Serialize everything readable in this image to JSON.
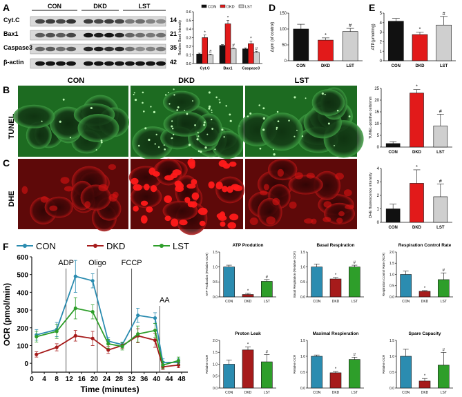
{
  "panel_letters": {
    "A": "A",
    "B": "B",
    "C": "C",
    "D": "D",
    "E": "E",
    "F": "F"
  },
  "western_blot": {
    "group_labels": [
      "CON",
      "DKD",
      "LST"
    ],
    "bands": [
      {
        "name": "Cyt.C",
        "kda": "14"
      },
      {
        "name": "Bax1",
        "kda": "21"
      },
      {
        "name": "Caspase3",
        "kda": "35"
      },
      {
        "name": "β-actin",
        "kda": "42"
      }
    ]
  },
  "micrographs": {
    "column_labels": [
      "CON",
      "DKD",
      "LST"
    ],
    "row_labels": [
      "TUNEL",
      "DHE"
    ]
  },
  "colors": {
    "CON": "#111111",
    "DKD": "#e21a1a",
    "LST": "#cfcfcf",
    "oc_CON": "#2b8cb0",
    "oc_DKD": "#a61b1b",
    "oc_LST": "#2e9e2a",
    "tunel": "#2f9a32",
    "dhe": "#c81010"
  },
  "chart_data": [
    {
      "id": "A-bands",
      "type": "bar",
      "title": "",
      "ylabel": "Relative Band Intensity",
      "categories": [
        "Cyt.C",
        "Bax1",
        "Caspase3"
      ],
      "series": [
        {
          "name": "CON",
          "values": [
            0.11,
            0.21,
            0.17
          ],
          "errors": [
            0.01,
            0.01,
            0.01
          ]
        },
        {
          "name": "DKD",
          "values": [
            0.3,
            0.46,
            0.23
          ],
          "errors": [
            0.03,
            0.04,
            0.03
          ]
        },
        {
          "name": "LST",
          "values": [
            0.1,
            0.17,
            0.13
          ],
          "errors": [
            0.01,
            0.01,
            0.01
          ]
        }
      ],
      "ylim": [
        0,
        0.6
      ],
      "yticks": [
        0.0,
        0.1,
        0.2,
        0.3,
        0.4,
        0.5,
        0.6
      ],
      "ytick_labels": [
        "0.0",
        "0.1",
        "0.2",
        "0.3",
        "0.4",
        "0.5",
        "0.6"
      ],
      "markers": [
        "",
        "*",
        "#",
        "",
        "*",
        "#",
        "",
        "*",
        "#"
      ],
      "legend": "top"
    },
    {
      "id": "D",
      "type": "bar",
      "title": "",
      "ylabel": "Δψm (of control)",
      "categories": [
        "CON",
        "DKD",
        "LST"
      ],
      "values": [
        100,
        65,
        92
      ],
      "errors": [
        15,
        7,
        10
      ],
      "ylim": [
        0,
        150
      ],
      "yticks": [
        0,
        50,
        100,
        150
      ],
      "ytick_labels": [
        "0",
        "50",
        "100",
        "150"
      ],
      "markers": [
        "",
        "*",
        "#"
      ]
    },
    {
      "id": "E",
      "type": "bar",
      "title": "",
      "ylabel": "ATP(μmol/mg)",
      "categories": [
        "CON",
        "DKD",
        "LST"
      ],
      "values": [
        4.15,
        2.75,
        3.75
      ],
      "errors": [
        0.3,
        0.25,
        0.9
      ],
      "ylim": [
        0,
        5
      ],
      "yticks": [
        0,
        1,
        2,
        3,
        4,
        5
      ],
      "ytick_labels": [
        "0",
        "1",
        "2",
        "3",
        "4",
        "5"
      ],
      "markers": [
        "",
        "*",
        "#"
      ]
    },
    {
      "id": "B-quant",
      "type": "bar",
      "title": "",
      "ylabel": "TUNEL-positive cells/mm",
      "categories": [
        "CON",
        "DKD",
        "LST"
      ],
      "values": [
        1.5,
        23,
        9
      ],
      "errors": [
        0.8,
        1.5,
        5
      ],
      "ylim": [
        0,
        25
      ],
      "yticks": [
        0,
        5,
        10,
        15,
        20,
        25
      ],
      "ytick_labels": [
        "0",
        "5",
        "10",
        "15",
        "20",
        "25"
      ],
      "markers": [
        "",
        "*",
        "#"
      ]
    },
    {
      "id": "C-quant",
      "type": "bar",
      "title": "",
      "ylabel": "DHE fluorescence intensity",
      "categories": [
        "CON",
        "DKD",
        "LST"
      ],
      "values": [
        1.0,
        2.9,
        1.9
      ],
      "errors": [
        0.35,
        1.0,
        0.95
      ],
      "ylim": [
        0,
        4
      ],
      "yticks": [
        0,
        1,
        2,
        3,
        4
      ],
      "ytick_labels": [
        "0",
        "1",
        "2",
        "3",
        "4"
      ],
      "markers": [
        "",
        "*",
        "#"
      ]
    },
    {
      "id": "F-ocr",
      "type": "line",
      "title": "",
      "xlabel": "Time (minutes)",
      "ylabel": "OCR (pmol/min)",
      "x": [
        1.5,
        8,
        14,
        19.5,
        24.5,
        29,
        34,
        39.5,
        42,
        47
      ],
      "series": [
        {
          "name": "CON",
          "values": [
            160,
            190,
            490,
            465,
            125,
            105,
            270,
            255,
            5,
            5
          ]
        },
        {
          "name": "DKD",
          "values": [
            50,
            90,
            155,
            140,
            75,
            100,
            155,
            130,
            -20,
            -10
          ]
        },
        {
          "name": "LST",
          "values": [
            150,
            180,
            310,
            290,
            110,
            95,
            165,
            185,
            -10,
            15
          ]
        }
      ],
      "errors": [
        [
          30,
          40,
          90,
          40,
          20,
          15,
          40,
          30,
          20,
          20
        ],
        [
          15,
          20,
          30,
          40,
          20,
          15,
          40,
          40,
          15,
          15
        ],
        [
          30,
          40,
          60,
          40,
          25,
          20,
          45,
          40,
          20,
          20
        ]
      ],
      "xlim": [
        0,
        50
      ],
      "xticks": [
        0,
        4,
        8,
        12,
        16,
        20,
        24,
        28,
        32,
        36,
        40,
        44,
        48
      ],
      "xtick_labels": [
        "0",
        "4",
        "8",
        "12",
        "16",
        "20",
        "24",
        "28",
        "32",
        "36",
        "40",
        "44",
        "48"
      ],
      "ylim": [
        -50,
        600
      ],
      "yticks": [
        0,
        100,
        200,
        300,
        400,
        500,
        600
      ],
      "ytick_labels": [
        "0",
        "100",
        "200",
        "300",
        "400",
        "500",
        "600"
      ],
      "annotations": [
        {
          "text": "ADP",
          "x": 11
        },
        {
          "text": "Oligo",
          "x": 21
        },
        {
          "text": "FCCP",
          "x": 32
        },
        {
          "text": "AA",
          "x": 41
        }
      ],
      "legend": "top"
    },
    {
      "id": "F-atp",
      "type": "bar",
      "title": "ATP Prodution",
      "ylabel": "ATP Production (Relative OCR)",
      "categories": [
        "CON",
        "DKD",
        "LST"
      ],
      "values": [
        1.0,
        0.08,
        0.52
      ],
      "errors": [
        0.06,
        0.04,
        0.06
      ],
      "ylim": [
        0,
        1.5
      ],
      "yticks": [
        0.0,
        0.5,
        1.0,
        1.5
      ],
      "ytick_labels": [
        "0.0",
        "0.5",
        "1.0",
        "1.5"
      ],
      "markers": [
        "",
        "*",
        "#"
      ]
    },
    {
      "id": "F-basal",
      "type": "bar",
      "title": "Basal Respiration",
      "ylabel": "Basal Respiration (Relative OCR)",
      "categories": [
        "CON",
        "DKD",
        "LST"
      ],
      "values": [
        1.0,
        0.6,
        1.0
      ],
      "errors": [
        0.1,
        0.05,
        0.06
      ],
      "ylim": [
        0,
        1.5
      ],
      "yticks": [
        0.0,
        0.5,
        1.0,
        1.5
      ],
      "ytick_labels": [
        "0.0",
        "0.5",
        "1.0",
        "1.5"
      ],
      "markers": [
        "",
        "*",
        "#"
      ]
    },
    {
      "id": "F-rcr",
      "type": "bar",
      "title": "Respiration Control Rate",
      "ylabel": "Respiration Control Rate (RCR)",
      "categories": [
        "CON",
        "DKD",
        "LST"
      ],
      "values": [
        1.0,
        0.25,
        0.77
      ],
      "errors": [
        0.15,
        0.03,
        0.3
      ],
      "ylim": [
        0,
        2.0
      ],
      "yticks": [
        0.0,
        0.5,
        1.0,
        1.5,
        2.0
      ],
      "ytick_labels": [
        "0.0",
        "0.5",
        "1.0",
        "1.5",
        "2.0"
      ],
      "markers": [
        "",
        "*",
        "#"
      ]
    },
    {
      "id": "F-leak",
      "type": "bar",
      "title": "Proton Leak",
      "ylabel": "Relative OCR",
      "categories": [
        "CON",
        "DKD",
        "LST"
      ],
      "values": [
        1.0,
        1.6,
        1.1
      ],
      "errors": [
        0.18,
        0.12,
        0.3
      ],
      "ylim": [
        0,
        2.0
      ],
      "yticks": [
        0.0,
        0.5,
        1.0,
        1.5,
        2.0
      ],
      "ytick_labels": [
        "0.0",
        "0.5",
        "1.0",
        "1.5",
        "2.0"
      ],
      "markers": [
        "",
        "*",
        "#"
      ]
    },
    {
      "id": "F-max",
      "type": "bar",
      "title": "Maximal Respieration",
      "ylabel": "Relative OCR",
      "categories": [
        "CON",
        "DKD",
        "LST"
      ],
      "values": [
        1.0,
        0.48,
        0.9
      ],
      "errors": [
        0.04,
        0.04,
        0.07
      ],
      "ylim": [
        0,
        1.5
      ],
      "yticks": [
        0.0,
        0.5,
        1.0,
        1.5
      ],
      "ytick_labels": [
        "0.0",
        "0.5",
        "1.0",
        "1.5"
      ],
      "markers": [
        "",
        "*",
        "#"
      ]
    },
    {
      "id": "F-spare",
      "type": "bar",
      "title": "Spare Capacity",
      "ylabel": "Relative OCR",
      "categories": [
        "CON",
        "DKD",
        "LST"
      ],
      "values": [
        1.0,
        0.22,
        0.72
      ],
      "errors": [
        0.22,
        0.08,
        0.4
      ],
      "ylim": [
        0,
        1.5
      ],
      "yticks": [
        0.0,
        0.5,
        1.0,
        1.5
      ],
      "ytick_labels": [
        "0.0",
        "0.5",
        "1.0",
        "1.5"
      ],
      "markers": [
        "",
        "*",
        "#"
      ]
    }
  ]
}
